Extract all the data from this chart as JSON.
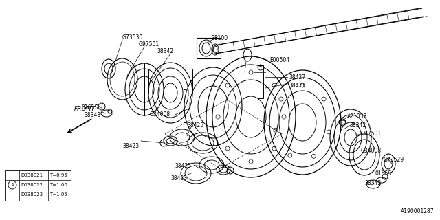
{
  "bg_color": "#ffffff",
  "fg_color": "#000000",
  "watermark": "A190001287",
  "legend_rows": [
    {
      "part": "D038021",
      "thickness": "T=0.95"
    },
    {
      "part": "D038022",
      "thickness": "T=1.00"
    },
    {
      "part": "D038023",
      "thickness": "T=1.05"
    }
  ]
}
